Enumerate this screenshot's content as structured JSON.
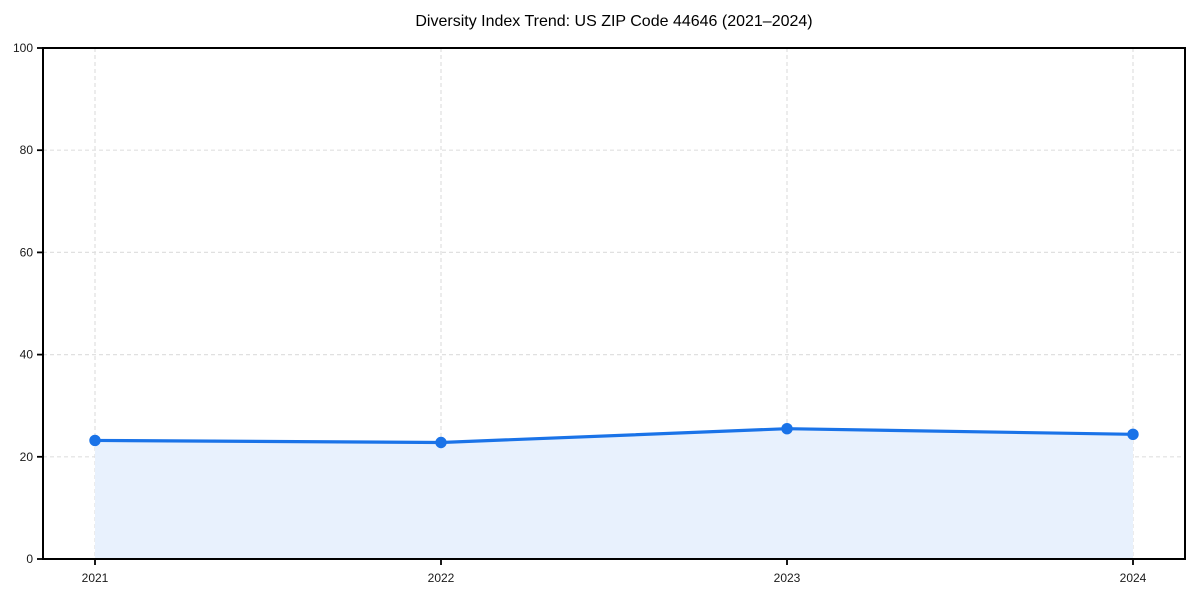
{
  "figure": {
    "background": "#ffffff"
  },
  "chart_data": {
    "type": "area",
    "title": "Diversity Index Trend: US ZIP Code 44646 (2021–2024)",
    "categories": [
      "2021",
      "2022",
      "2023",
      "2024"
    ],
    "series": [
      {
        "name": "Diversity Index",
        "values": [
          23.2,
          22.8,
          25.5,
          24.4
        ]
      }
    ],
    "xlabel": "",
    "ylabel": "",
    "ylim": [
      0,
      100
    ],
    "yticks": [
      0,
      20,
      40,
      60,
      80,
      100
    ],
    "grid": "dashed",
    "legend_position": "none",
    "colors": {
      "line": "#1a73e8",
      "marker": "#1a73e8",
      "fill": "#e8f1fd",
      "grid": "#e0e0e0",
      "axis": "#000000",
      "tick_labels": "#1a1a1a",
      "title": "#000000"
    }
  }
}
